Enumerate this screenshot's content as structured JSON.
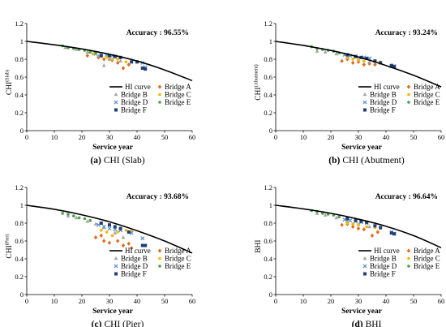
{
  "figure": {
    "x_label": "Service year",
    "legend_labels": {
      "hi": "HI curve",
      "A": "Bridge A",
      "B": "Bridge B",
      "C": "Bridge C",
      "D": "Bridge D",
      "E": "Bridge E",
      "F": "Bridge F"
    },
    "colors": {
      "A": "#e06a1b",
      "B": "#a6a6a6",
      "C": "#f2b800",
      "D": "#5b8fd6",
      "E": "#4aa24a",
      "F": "#1f3f75",
      "curve": "#000000"
    },
    "x_ticks": [
      "0",
      "10",
      "20",
      "30",
      "40",
      "50",
      "60"
    ],
    "y_ticks": [
      "0",
      "0.2",
      "0.4",
      "0.6",
      "0.8",
      "1",
      "1.2"
    ]
  },
  "chart_data": [
    {
      "type": "scatter",
      "caption_tag": "(a)",
      "caption_text": "CHI (Slab)",
      "accuracy_text": "Accuracy : 96.55%",
      "ylabel_main": "CHI",
      "ylabel_sup": "(Slab)",
      "xlabel": "Service year",
      "xlim": [
        0,
        60
      ],
      "ylim": [
        0,
        1.2
      ],
      "curve": {
        "name": "HI curve",
        "x": [
          0,
          10,
          20,
          30,
          40,
          50,
          60
        ],
        "y": [
          1.0,
          0.962,
          0.915,
          0.855,
          0.78,
          0.68,
          0.56
        ]
      },
      "series": [
        {
          "name": "Bridge A",
          "key": "A",
          "marker": "diamond",
          "points": [
            [
              22,
              0.84
            ],
            [
              26,
              0.82
            ],
            [
              28,
              0.8
            ],
            [
              30,
              0.8
            ],
            [
              31,
              0.79
            ],
            [
              33,
              0.76
            ],
            [
              35,
              0.7
            ],
            [
              37,
              0.74
            ]
          ]
        },
        {
          "name": "Bridge B",
          "key": "B",
          "marker": "triangle",
          "points": [
            [
              14,
              0.93
            ],
            [
              18,
              0.91
            ],
            [
              22,
              0.88
            ],
            [
              26,
              0.84
            ],
            [
              28,
              0.73
            ],
            [
              30,
              0.8
            ],
            [
              34,
              0.78
            ]
          ]
        },
        {
          "name": "Bridge C",
          "key": "C",
          "marker": "circle",
          "points": [
            [
              24,
              0.86
            ],
            [
              27,
              0.83
            ],
            [
              29,
              0.82
            ],
            [
              31,
              0.8
            ],
            [
              33,
              0.8
            ],
            [
              36,
              0.77
            ]
          ]
        },
        {
          "name": "Bridge D",
          "key": "D",
          "marker": "x",
          "points": [
            [
              25,
              0.86
            ],
            [
              27,
              0.85
            ],
            [
              29,
              0.85
            ],
            [
              31,
              0.84
            ],
            [
              32,
              0.83
            ],
            [
              42,
              0.76
            ],
            [
              43,
              0.71
            ]
          ]
        },
        {
          "name": "Bridge E",
          "key": "E",
          "marker": "circle",
          "points": [
            [
              13,
              0.95
            ],
            [
              15,
              0.93
            ],
            [
              17,
              0.92
            ],
            [
              19,
              0.91
            ],
            [
              21,
              0.9
            ],
            [
              23,
              0.88
            ],
            [
              25,
              0.87
            ]
          ]
        },
        {
          "name": "Bridge F",
          "key": "F",
          "marker": "square",
          "points": [
            [
              27,
              0.84
            ],
            [
              30,
              0.84
            ],
            [
              32,
              0.83
            ],
            [
              34,
              0.82
            ],
            [
              38,
              0.77
            ],
            [
              40,
              0.77
            ],
            [
              42,
              0.7
            ],
            [
              43,
              0.69
            ]
          ]
        }
      ]
    },
    {
      "type": "scatter",
      "caption_tag": "(b)",
      "caption_text": "CHI (Abutment)",
      "accuracy_text": "Accuracy : 93.24%",
      "ylabel_main": "CHI",
      "ylabel_sup": "(Abutment)",
      "xlabel": "Service year",
      "xlim": [
        0,
        60
      ],
      "ylim": [
        0,
        1.2
      ],
      "curve": {
        "name": "HI curve",
        "x": [
          0,
          10,
          20,
          30,
          40,
          50,
          60
        ],
        "y": [
          1.0,
          0.955,
          0.898,
          0.825,
          0.73,
          0.62,
          0.49
        ]
      },
      "series": [
        {
          "name": "Bridge A",
          "key": "A",
          "marker": "diamond",
          "points": [
            [
              24,
              0.78
            ],
            [
              26,
              0.8
            ],
            [
              28,
              0.76
            ],
            [
              30,
              0.77
            ],
            [
              32,
              0.74
            ],
            [
              34,
              0.75
            ],
            [
              36,
              0.74
            ]
          ]
        },
        {
          "name": "Bridge B",
          "key": "B",
          "marker": "triangle",
          "points": [
            [
              15,
              0.89
            ],
            [
              18,
              0.88
            ],
            [
              22,
              0.86
            ],
            [
              26,
              0.82
            ],
            [
              30,
              0.8
            ],
            [
              34,
              0.77
            ]
          ]
        },
        {
          "name": "Bridge C",
          "key": "C",
          "marker": "circle",
          "points": [
            [
              26,
              0.82
            ],
            [
              28,
              0.8
            ],
            [
              30,
              0.79
            ],
            [
              32,
              0.78
            ],
            [
              36,
              0.78
            ],
            [
              38,
              0.77
            ]
          ]
        },
        {
          "name": "Bridge D",
          "key": "D",
          "marker": "x",
          "points": [
            [
              25,
              0.85
            ],
            [
              27,
              0.84
            ],
            [
              29,
              0.83
            ],
            [
              32,
              0.82
            ],
            [
              34,
              0.81
            ],
            [
              42,
              0.72
            ],
            [
              43,
              0.72
            ]
          ]
        },
        {
          "name": "Bridge E",
          "key": "E",
          "marker": "circle",
          "points": [
            [
              13,
              0.94
            ],
            [
              15,
              0.92
            ],
            [
              17,
              0.91
            ],
            [
              19,
              0.9
            ],
            [
              21,
              0.89
            ],
            [
              23,
              0.87
            ]
          ]
        },
        {
          "name": "Bridge F",
          "key": "F",
          "marker": "square",
          "points": [
            [
              26,
              0.85
            ],
            [
              29,
              0.83
            ],
            [
              31,
              0.82
            ],
            [
              33,
              0.81
            ],
            [
              36,
              0.78
            ],
            [
              38,
              0.76
            ],
            [
              42,
              0.73
            ],
            [
              43,
              0.72
            ]
          ]
        }
      ]
    },
    {
      "type": "scatter",
      "caption_tag": "(c)",
      "caption_text": "CHI (Pier)",
      "accuracy_text": "Accuracy : 93.68%",
      "ylabel_main": "CHI",
      "ylabel_sup": "(Pier)",
      "xlabel": "Service year",
      "xlim": [
        0,
        60
      ],
      "ylim": [
        0,
        1.2
      ],
      "curve": {
        "name": "HI curve",
        "x": [
          0,
          10,
          20,
          30,
          40,
          50,
          60
        ],
        "y": [
          1.0,
          0.955,
          0.893,
          0.815,
          0.715,
          0.6,
          0.465
        ]
      },
      "series": [
        {
          "name": "Bridge A",
          "key": "A",
          "marker": "diamond",
          "points": [
            [
              25,
              0.64
            ],
            [
              27,
              0.66
            ],
            [
              28,
              0.6
            ],
            [
              30,
              0.58
            ],
            [
              33,
              0.6
            ],
            [
              35,
              0.55
            ],
            [
              37,
              0.57
            ],
            [
              38,
              0.52
            ]
          ]
        },
        {
          "name": "Bridge B",
          "key": "B",
          "marker": "triangle",
          "points": [
            [
              15,
              0.88
            ],
            [
              18,
              0.86
            ],
            [
              22,
              0.82
            ],
            [
              25,
              0.79
            ],
            [
              28,
              0.75
            ],
            [
              32,
              0.69
            ],
            [
              35,
              0.64
            ]
          ]
        },
        {
          "name": "Bridge C",
          "key": "C",
          "marker": "circle",
          "points": [
            [
              27,
              0.72
            ],
            [
              29,
              0.7
            ],
            [
              31,
              0.66
            ],
            [
              33,
              0.7
            ],
            [
              36,
              0.72
            ],
            [
              38,
              0.71
            ]
          ]
        },
        {
          "name": "Bridge D",
          "key": "D",
          "marker": "x",
          "points": [
            [
              26,
              0.78
            ],
            [
              28,
              0.76
            ],
            [
              30,
              0.74
            ],
            [
              32,
              0.73
            ],
            [
              34,
              0.72
            ],
            [
              38,
              0.69
            ],
            [
              42,
              0.63
            ]
          ]
        },
        {
          "name": "Bridge E",
          "key": "E",
          "marker": "circle",
          "points": [
            [
              13,
              0.91
            ],
            [
              15,
              0.9
            ],
            [
              17,
              0.88
            ],
            [
              19,
              0.86
            ],
            [
              21,
              0.85
            ],
            [
              23,
              0.83
            ]
          ]
        },
        {
          "name": "Bridge F",
          "key": "F",
          "marker": "square",
          "points": [
            [
              27,
              0.8
            ],
            [
              30,
              0.78
            ],
            [
              32,
              0.76
            ],
            [
              34,
              0.74
            ],
            [
              37,
              0.7
            ],
            [
              42,
              0.55
            ],
            [
              43,
              0.55
            ]
          ]
        }
      ]
    },
    {
      "type": "scatter",
      "caption_tag": "(d)",
      "caption_text": "BHI",
      "accuracy_text": "Accuracy : 96.64%",
      "ylabel_main": "BHI",
      "ylabel_sup": "",
      "xlabel": "Service year",
      "xlim": [
        0,
        60
      ],
      "ylim": [
        0,
        1.2
      ],
      "curve": {
        "name": "HI curve",
        "x": [
          0,
          10,
          20,
          30,
          40,
          50,
          60
        ],
        "y": [
          1.0,
          0.96,
          0.91,
          0.845,
          0.765,
          0.66,
          0.525
        ]
      },
      "series": [
        {
          "name": "Bridge A",
          "key": "A",
          "marker": "diamond",
          "points": [
            [
              24,
              0.78
            ],
            [
              26,
              0.79
            ],
            [
              28,
              0.76
            ],
            [
              30,
              0.74
            ],
            [
              32,
              0.73
            ],
            [
              35,
              0.66
            ],
            [
              37,
              0.7
            ]
          ]
        },
        {
          "name": "Bridge B",
          "key": "B",
          "marker": "triangle",
          "points": [
            [
              15,
              0.91
            ],
            [
              18,
              0.89
            ],
            [
              22,
              0.86
            ],
            [
              26,
              0.82
            ],
            [
              30,
              0.79
            ],
            [
              34,
              0.76
            ]
          ]
        },
        {
          "name": "Bridge C",
          "key": "C",
          "marker": "circle",
          "points": [
            [
              26,
              0.8
            ],
            [
              28,
              0.79
            ],
            [
              30,
              0.78
            ],
            [
              33,
              0.76
            ],
            [
              36,
              0.75
            ],
            [
              38,
              0.74
            ]
          ]
        },
        {
          "name": "Bridge D",
          "key": "D",
          "marker": "x",
          "points": [
            [
              25,
              0.84
            ],
            [
              27,
              0.83
            ],
            [
              29,
              0.82
            ],
            [
              31,
              0.81
            ],
            [
              33,
              0.8
            ],
            [
              42,
              0.7
            ],
            [
              43,
              0.68
            ]
          ]
        },
        {
          "name": "Bridge E",
          "key": "E",
          "marker": "circle",
          "points": [
            [
              13,
              0.94
            ],
            [
              15,
              0.93
            ],
            [
              17,
              0.91
            ],
            [
              19,
              0.9
            ],
            [
              21,
              0.89
            ],
            [
              23,
              0.87
            ]
          ]
        },
        {
          "name": "Bridge F",
          "key": "F",
          "marker": "square",
          "points": [
            [
              26,
              0.85
            ],
            [
              29,
              0.83
            ],
            [
              31,
              0.82
            ],
            [
              33,
              0.81
            ],
            [
              36,
              0.77
            ],
            [
              38,
              0.75
            ],
            [
              42,
              0.69
            ],
            [
              43,
              0.68
            ]
          ]
        }
      ]
    }
  ]
}
